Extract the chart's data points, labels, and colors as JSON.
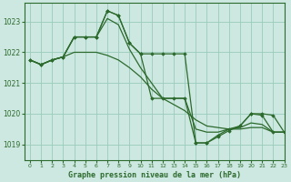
{
  "title": "Graphe pression niveau de la mer (hPa)",
  "background_color": "#cce8e0",
  "grid_color": "#99ccbb",
  "line_color": "#2d6a2d",
  "xlim": [
    -0.5,
    23
  ],
  "ylim": [
    1018.5,
    1023.6
  ],
  "yticks": [
    1019,
    1020,
    1021,
    1022,
    1023
  ],
  "xticks": [
    0,
    1,
    2,
    3,
    4,
    5,
    6,
    7,
    8,
    9,
    10,
    11,
    12,
    13,
    14,
    15,
    16,
    17,
    18,
    19,
    20,
    21,
    22,
    23
  ],
  "series": [
    {
      "x": [
        0,
        1,
        2,
        3,
        4,
        5,
        6,
        7,
        8,
        9,
        10,
        11,
        12,
        13,
        14,
        15,
        16,
        17,
        18,
        19,
        20,
        21,
        22,
        23
      ],
      "y": [
        1021.75,
        1021.6,
        1021.75,
        1021.85,
        1022.5,
        1022.5,
        1022.5,
        1023.35,
        1023.2,
        1022.3,
        1021.95,
        1021.95,
        1021.95,
        1021.95,
        1021.95,
        1019.05,
        1019.05,
        1019.25,
        1019.45,
        1019.6,
        1020.0,
        1019.95,
        1019.4,
        1019.4
      ],
      "marker": true,
      "linewidth": 0.9
    },
    {
      "x": [
        0,
        1,
        2,
        3,
        4,
        5,
        6,
        7,
        8,
        9,
        10,
        11,
        12,
        13,
        14,
        15,
        16,
        17,
        18,
        19,
        20,
        21,
        22,
        23
      ],
      "y": [
        1021.75,
        1021.6,
        1021.75,
        1021.85,
        1022.5,
        1022.5,
        1022.5,
        1023.1,
        1022.9,
        1022.1,
        1021.5,
        1021.0,
        1020.5,
        1020.5,
        1020.5,
        1019.5,
        1019.4,
        1019.4,
        1019.5,
        1019.55,
        1019.7,
        1019.65,
        1019.4,
        1019.4
      ],
      "marker": false,
      "linewidth": 0.9
    },
    {
      "x": [
        0,
        1,
        2,
        3,
        4,
        5,
        6,
        7,
        8,
        9,
        10,
        11,
        12,
        13,
        14,
        15,
        16,
        17,
        18,
        19,
        20,
        21,
        22,
        23
      ],
      "y": [
        1021.75,
        1021.6,
        1021.75,
        1021.85,
        1022.0,
        1022.0,
        1022.0,
        1021.9,
        1021.75,
        1021.5,
        1021.2,
        1020.8,
        1020.5,
        1020.3,
        1020.1,
        1019.8,
        1019.6,
        1019.55,
        1019.5,
        1019.5,
        1019.55,
        1019.55,
        1019.4,
        1019.4
      ],
      "marker": false,
      "linewidth": 0.9
    },
    {
      "x": [
        0,
        1,
        2,
        3,
        4,
        5,
        6,
        7,
        8,
        9,
        10,
        11,
        12,
        13,
        14,
        15,
        16,
        17,
        18,
        19,
        20,
        21,
        22,
        23
      ],
      "y": [
        1021.75,
        1021.6,
        1021.75,
        1021.85,
        1022.5,
        1022.5,
        1022.5,
        1023.35,
        1023.2,
        1022.3,
        1021.95,
        1020.5,
        1020.5,
        1020.5,
        1020.5,
        1019.05,
        1019.05,
        1019.3,
        1019.5,
        1019.6,
        1020.0,
        1020.0,
        1019.95,
        1019.4
      ],
      "marker": true,
      "linewidth": 0.9
    }
  ]
}
